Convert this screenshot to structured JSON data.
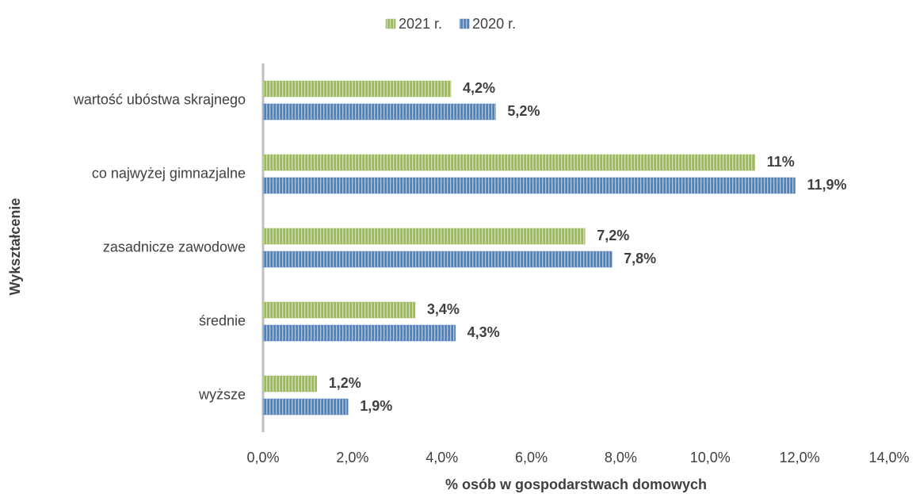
{
  "chart_data": {
    "type": "barh",
    "categories": [
      "wartość ubóstwa skrajnego",
      "co najwyżej gimnazjalne",
      "zasadnicze zawodowe",
      "średnie",
      "wyższe"
    ],
    "series": [
      {
        "name": "2021 r.",
        "color": "#9bbb59",
        "values": [
          4.2,
          11,
          7.2,
          3.4,
          1.2
        ],
        "value_labels": [
          "4,2%",
          "11%",
          "7,2%",
          "3,4%",
          "1,2%"
        ]
      },
      {
        "name": "2020 r.",
        "color": "#4f81bd",
        "values": [
          5.2,
          11.9,
          7.8,
          4.3,
          1.9
        ],
        "value_labels": [
          "5,2%",
          "11,9%",
          "7,8%",
          "4,3%",
          "1,9%"
        ]
      }
    ],
    "xlim": [
      0,
      14
    ],
    "xticks": [
      {
        "value": 0,
        "label": "0,0%"
      },
      {
        "value": 2,
        "label": "2,0%"
      },
      {
        "value": 4,
        "label": "4,0%"
      },
      {
        "value": 6,
        "label": "6,0%"
      },
      {
        "value": 8,
        "label": "8,0%"
      },
      {
        "value": 10,
        "label": "10,0%"
      },
      {
        "value": 12,
        "label": "12,0%"
      },
      {
        "value": 14,
        "label": "14,0%"
      }
    ],
    "x_label": "% osób w gospodarstwach domowych",
    "y_label": "Wykształcenie",
    "legend": "top"
  }
}
